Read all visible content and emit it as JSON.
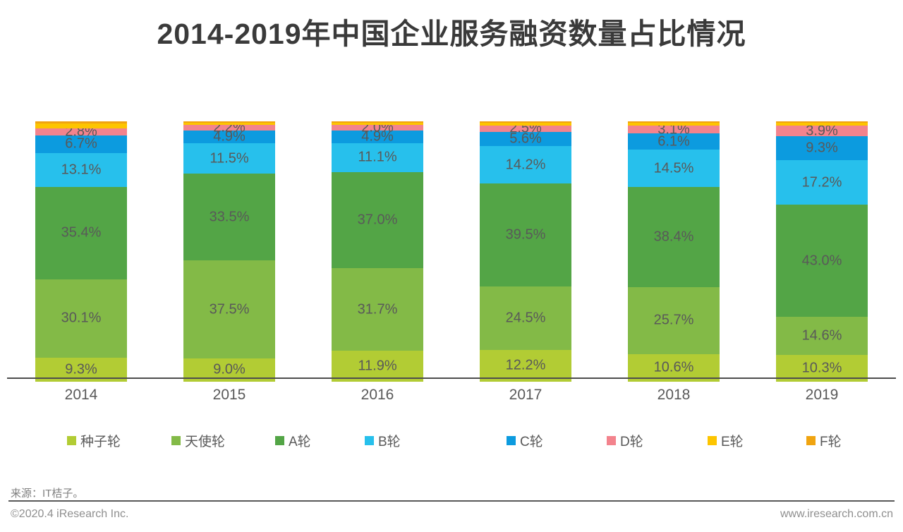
{
  "title": "2014-2019年中国企业服务融资数量占比情况",
  "source_note": "来源：IT桔子。",
  "footer": {
    "left": "©2020.4 iResearch Inc.",
    "right": "www.iresearch.com.cn"
  },
  "chart_data": {
    "type": "bar",
    "stacked": true,
    "unit": "%",
    "title": "2014-2019年中国企业服务融资数量占比情况",
    "categories": [
      "2014",
      "2015",
      "2016",
      "2017",
      "2018",
      "2019"
    ],
    "series": [
      {
        "name": "种子轮",
        "color": "#b2cc34",
        "values": [
          9.3,
          9.0,
          11.9,
          12.2,
          10.6,
          10.3
        ]
      },
      {
        "name": "天使轮",
        "color": "#83ba47",
        "values": [
          30.1,
          37.5,
          31.7,
          24.5,
          25.7,
          14.6
        ]
      },
      {
        "name": "A轮",
        "color": "#53a546",
        "values": [
          35.4,
          33.5,
          37.0,
          39.5,
          38.4,
          43.0
        ]
      },
      {
        "name": "B轮",
        "color": "#27c0ec",
        "values": [
          13.1,
          11.5,
          11.1,
          14.2,
          14.5,
          17.2
        ]
      },
      {
        "name": "C轮",
        "color": "#0c9bdf",
        "values": [
          6.7,
          4.9,
          4.9,
          5.6,
          6.1,
          9.3
        ]
      },
      {
        "name": "D轮",
        "color": "#f3838d",
        "values": [
          2.8,
          2.2,
          2.0,
          2.5,
          3.1,
          3.9
        ]
      },
      {
        "name": "E轮",
        "color": "#fdc500",
        "values": [
          1.7,
          0.9,
          0.9,
          1.0,
          1.0,
          1.1
        ]
      },
      {
        "name": "F轮",
        "color": "#f0a410",
        "values": [
          0.9,
          0.5,
          0.5,
          0.5,
          0.6,
          0.6
        ]
      }
    ],
    "label_min_value": 2.0,
    "label_format": "0.0%",
    "xlabel": "",
    "ylabel": "",
    "ylim": [
      0,
      100
    ],
    "grid": false,
    "y_axis_visible": false,
    "legend_position": "bottom"
  }
}
